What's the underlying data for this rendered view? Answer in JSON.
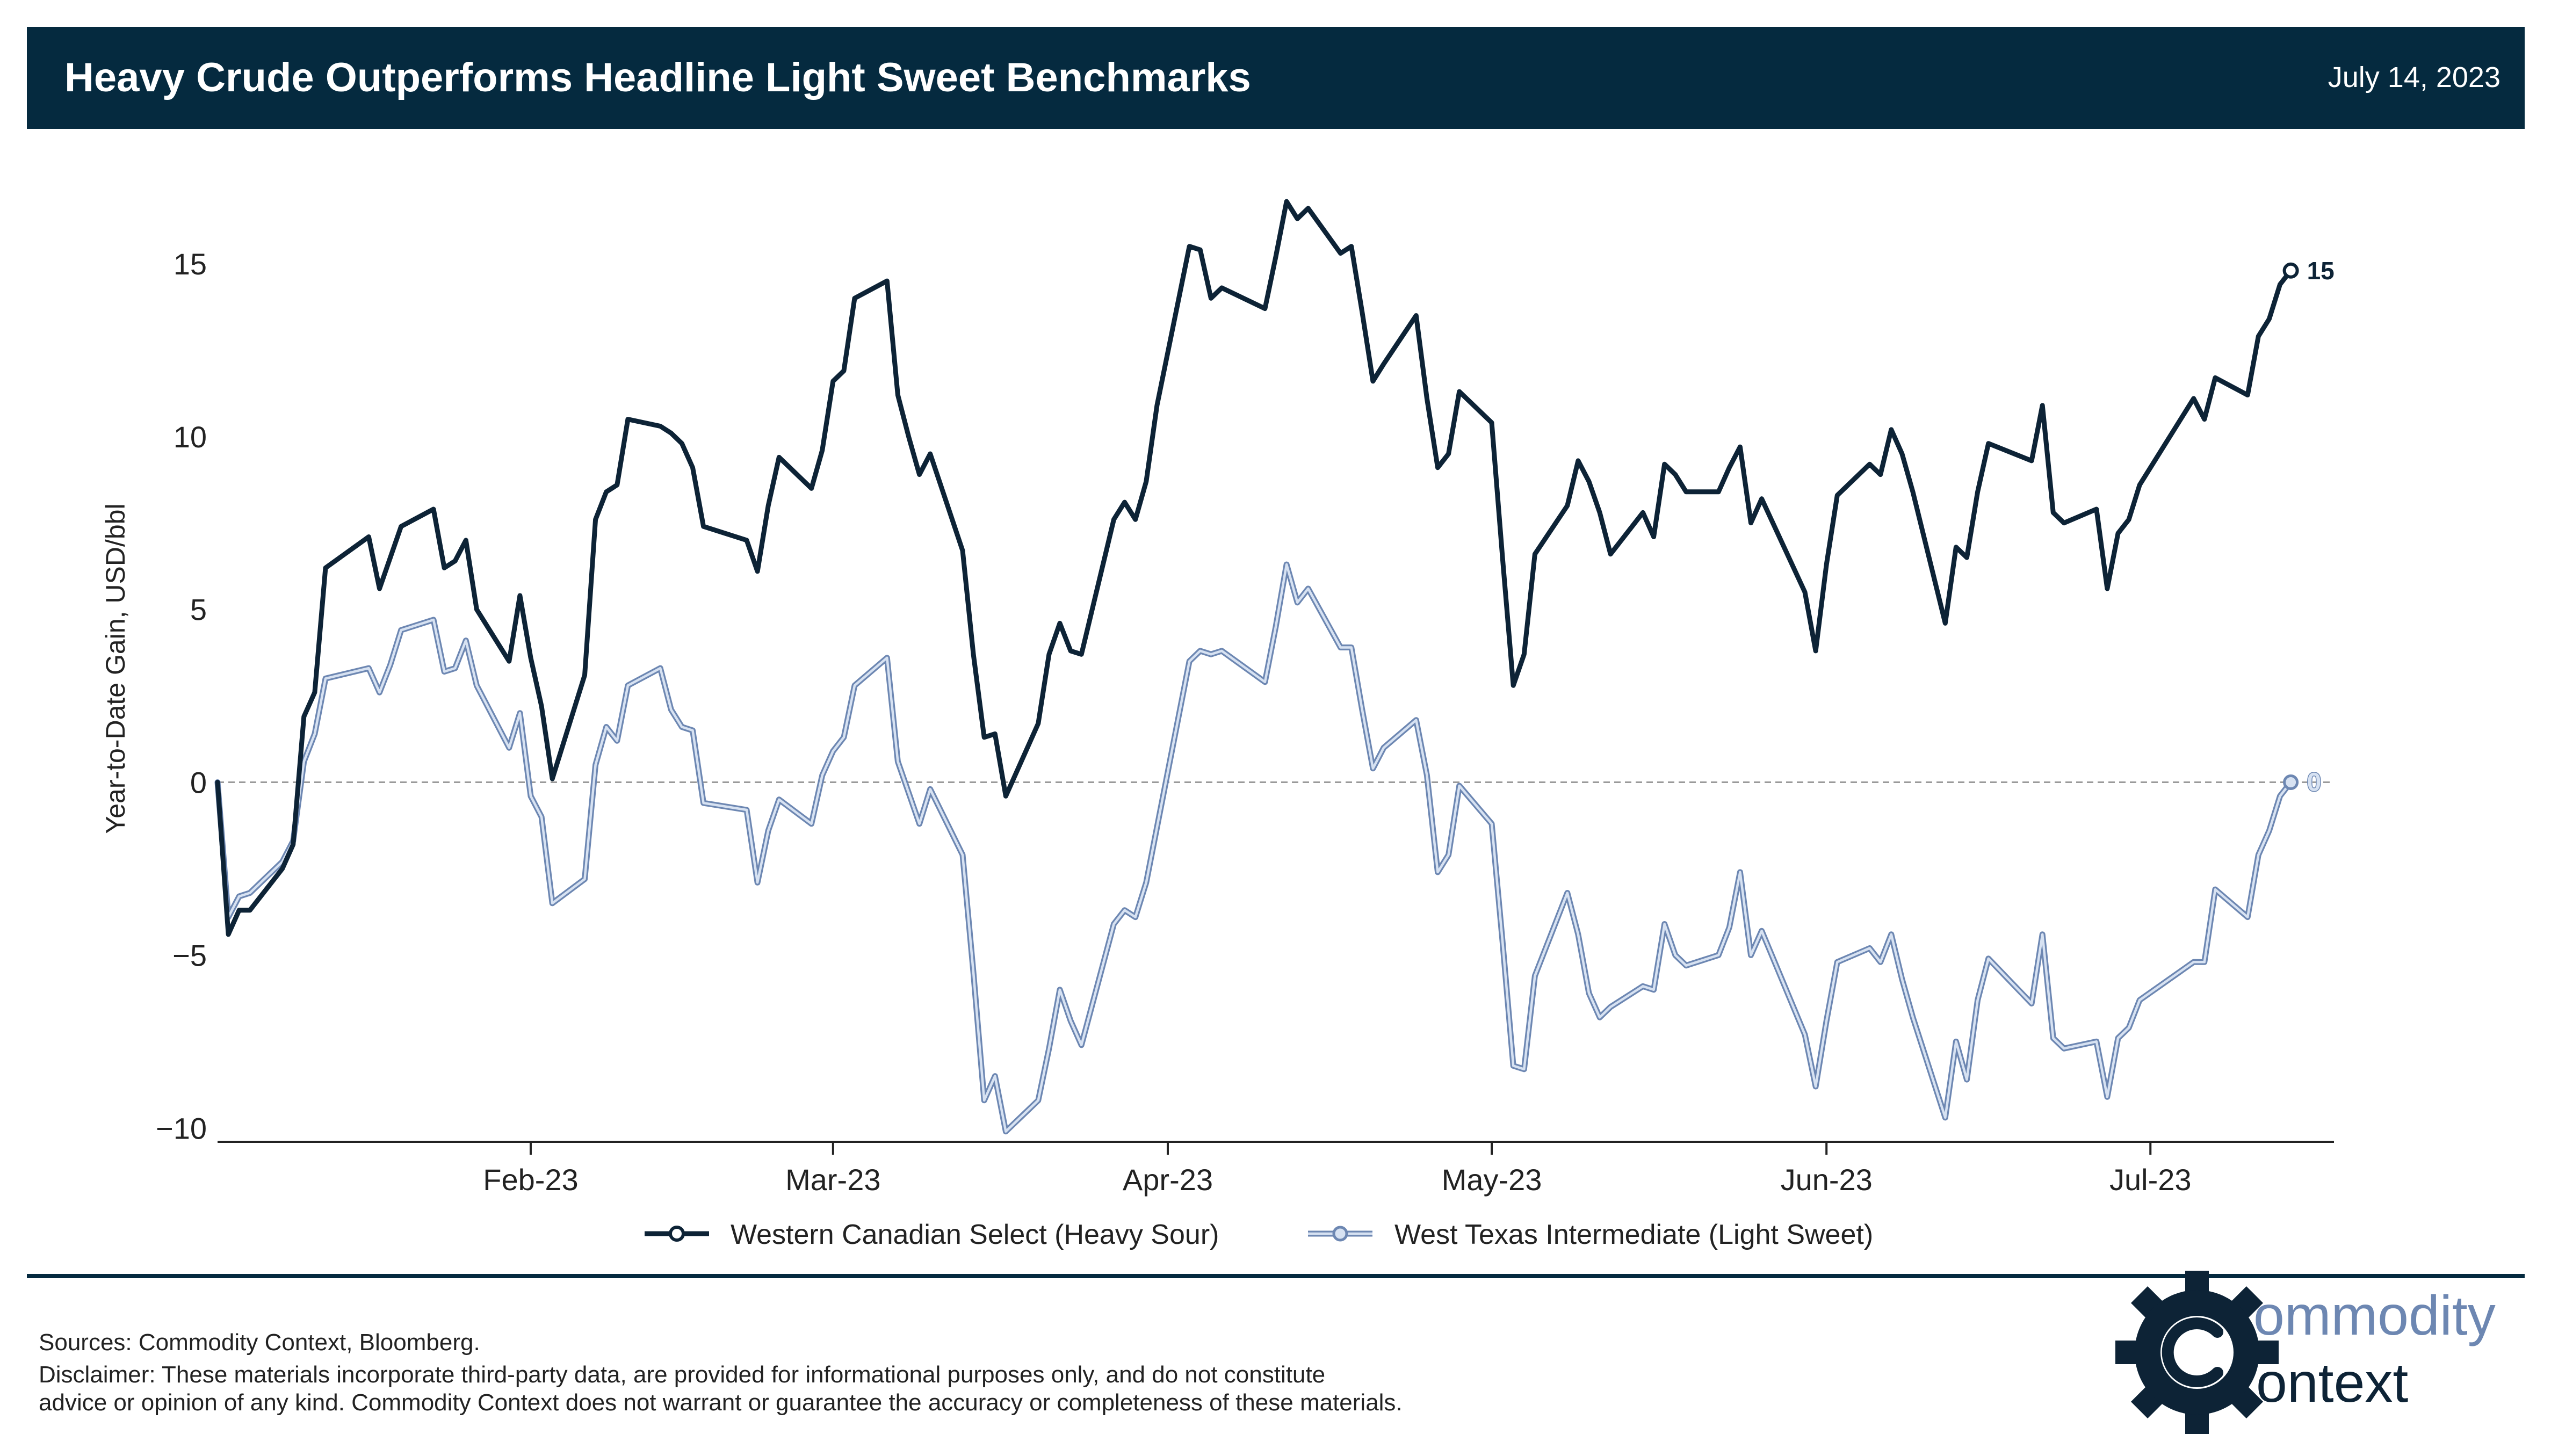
{
  "header": {
    "title": "Heavy Crude Outperforms Headline Light Sweet Benchmarks",
    "date": "July 14, 2023"
  },
  "colors": {
    "header_bg": "#052a3f",
    "header_text": "#ffffff",
    "wcs_line": "#0d2336",
    "wti_line": "#6d87b2",
    "wti_fill": "#d7e2f2",
    "zero_line": "#9a9a9a",
    "axis": "#222222",
    "logo_dark": "#0d2336",
    "logo_light": "#6d87b2"
  },
  "footer": {
    "sources": "Sources: Commodity Context, Bloomberg.",
    "disclaimer_line1": "Disclaimer: These materials incorporate third-party data, are provided for informational purposes only, and do not constitute",
    "disclaimer_line2": "advice or opinion of any kind. Commodity Context does not warrant or guarantee the accuracy or completeness of these materials."
  },
  "logo": {
    "word1_rest": "ommodity",
    "word2_rest": "ontext",
    "gear_letter": "C",
    "icon": "gear-c-icon"
  },
  "chart_data": {
    "type": "line",
    "title": "Heavy Crude Outperforms Headline Light Sweet Benchmarks",
    "ylabel": "Year-to-Date Gain, USD/bbl",
    "xlabel": "",
    "ylim": [
      -10.4,
      17.5
    ],
    "xlim": [
      "2023-01-03",
      "2023-07-18"
    ],
    "yticks": [
      -10,
      -5,
      0,
      5,
      10,
      15
    ],
    "ytick_labels": [
      "−10",
      "−5",
      "0",
      "5",
      "10",
      "15"
    ],
    "xticks": [
      "2023-02-01",
      "2023-03-01",
      "2023-04-01",
      "2023-05-01",
      "2023-06-01",
      "2023-07-01"
    ],
    "xtick_labels": [
      "Feb-23",
      "Mar-23",
      "Apr-23",
      "May-23",
      "Jun-23",
      "Jul-23"
    ],
    "zero_line": true,
    "grid": false,
    "legend_position": "bottom-center",
    "series": [
      {
        "name": "Western Canadian Select (Heavy Sour)",
        "end_label": "15",
        "points": [
          [
            "2023-01-03",
            0.0
          ],
          [
            "2023-01-04",
            -4.4
          ],
          [
            "2023-01-05",
            -3.7
          ],
          [
            "2023-01-06",
            -3.7
          ],
          [
            "2023-01-09",
            -2.5
          ],
          [
            "2023-01-10",
            -1.8
          ],
          [
            "2023-01-11",
            1.9
          ],
          [
            "2023-01-12",
            2.6
          ],
          [
            "2023-01-13",
            6.2
          ],
          [
            "2023-01-17",
            7.1
          ],
          [
            "2023-01-18",
            5.6
          ],
          [
            "2023-01-19",
            6.5
          ],
          [
            "2023-01-20",
            7.4
          ],
          [
            "2023-01-23",
            7.9
          ],
          [
            "2023-01-24",
            6.2
          ],
          [
            "2023-01-25",
            6.4
          ],
          [
            "2023-01-26",
            7.0
          ],
          [
            "2023-01-27",
            5.0
          ],
          [
            "2023-01-30",
            3.5
          ],
          [
            "2023-01-31",
            5.4
          ],
          [
            "2023-02-01",
            3.6
          ],
          [
            "2023-02-02",
            2.2
          ],
          [
            "2023-02-03",
            0.1
          ],
          [
            "2023-02-06",
            3.1
          ],
          [
            "2023-02-07",
            7.6
          ],
          [
            "2023-02-08",
            8.4
          ],
          [
            "2023-02-09",
            8.6
          ],
          [
            "2023-02-10",
            10.5
          ],
          [
            "2023-02-13",
            10.3
          ],
          [
            "2023-02-14",
            10.1
          ],
          [
            "2023-02-15",
            9.8
          ],
          [
            "2023-02-16",
            9.1
          ],
          [
            "2023-02-17",
            7.4
          ],
          [
            "2023-02-21",
            7.0
          ],
          [
            "2023-02-22",
            6.1
          ],
          [
            "2023-02-23",
            8.0
          ],
          [
            "2023-02-24",
            9.4
          ],
          [
            "2023-02-27",
            8.5
          ],
          [
            "2023-02-28",
            9.6
          ],
          [
            "2023-03-01",
            11.6
          ],
          [
            "2023-03-02",
            11.9
          ],
          [
            "2023-03-03",
            14.0
          ],
          [
            "2023-03-06",
            14.5
          ],
          [
            "2023-03-07",
            11.2
          ],
          [
            "2023-03-08",
            10.0
          ],
          [
            "2023-03-09",
            8.9
          ],
          [
            "2023-03-10",
            9.5
          ],
          [
            "2023-03-13",
            6.7
          ],
          [
            "2023-03-14",
            3.7
          ],
          [
            "2023-03-15",
            1.3
          ],
          [
            "2023-03-16",
            1.4
          ],
          [
            "2023-03-17",
            -0.4
          ],
          [
            "2023-03-20",
            1.7
          ],
          [
            "2023-03-21",
            3.7
          ],
          [
            "2023-03-22",
            4.6
          ],
          [
            "2023-03-23",
            3.8
          ],
          [
            "2023-03-24",
            3.7
          ],
          [
            "2023-03-27",
            7.6
          ],
          [
            "2023-03-28",
            8.1
          ],
          [
            "2023-03-29",
            7.6
          ],
          [
            "2023-03-30",
            8.7
          ],
          [
            "2023-03-31",
            10.9
          ],
          [
            "2023-04-03",
            15.5
          ],
          [
            "2023-04-04",
            15.4
          ],
          [
            "2023-04-05",
            14.0
          ],
          [
            "2023-04-06",
            14.3
          ],
          [
            "2023-04-10",
            13.7
          ],
          [
            "2023-04-11",
            15.2
          ],
          [
            "2023-04-12",
            16.8
          ],
          [
            "2023-04-13",
            16.3
          ],
          [
            "2023-04-14",
            16.6
          ],
          [
            "2023-04-17",
            15.3
          ],
          [
            "2023-04-18",
            15.5
          ],
          [
            "2023-04-19",
            13.6
          ],
          [
            "2023-04-20",
            11.6
          ],
          [
            "2023-04-21",
            12.1
          ],
          [
            "2023-04-24",
            13.5
          ],
          [
            "2023-04-25",
            11.1
          ],
          [
            "2023-04-26",
            9.1
          ],
          [
            "2023-04-27",
            9.5
          ],
          [
            "2023-04-28",
            11.3
          ],
          [
            "2023-05-01",
            10.4
          ],
          [
            "2023-05-02",
            6.5
          ],
          [
            "2023-05-03",
            2.8
          ],
          [
            "2023-05-04",
            3.7
          ],
          [
            "2023-05-05",
            6.6
          ],
          [
            "2023-05-08",
            8.0
          ],
          [
            "2023-05-09",
            9.3
          ],
          [
            "2023-05-10",
            8.7
          ],
          [
            "2023-05-11",
            7.8
          ],
          [
            "2023-05-12",
            6.6
          ],
          [
            "2023-05-15",
            7.8
          ],
          [
            "2023-05-16",
            7.1
          ],
          [
            "2023-05-17",
            9.2
          ],
          [
            "2023-05-18",
            8.9
          ],
          [
            "2023-05-19",
            8.4
          ],
          [
            "2023-05-22",
            8.4
          ],
          [
            "2023-05-23",
            9.1
          ],
          [
            "2023-05-24",
            9.7
          ],
          [
            "2023-05-25",
            7.5
          ],
          [
            "2023-05-26",
            8.2
          ],
          [
            "2023-05-30",
            5.5
          ],
          [
            "2023-05-31",
            3.8
          ],
          [
            "2023-06-01",
            6.3
          ],
          [
            "2023-06-02",
            8.3
          ],
          [
            "2023-06-05",
            9.2
          ],
          [
            "2023-06-06",
            8.9
          ],
          [
            "2023-06-07",
            10.2
          ],
          [
            "2023-06-08",
            9.5
          ],
          [
            "2023-06-09",
            8.4
          ],
          [
            "2023-06-12",
            4.6
          ],
          [
            "2023-06-13",
            6.8
          ],
          [
            "2023-06-14",
            6.5
          ],
          [
            "2023-06-15",
            8.4
          ],
          [
            "2023-06-16",
            9.8
          ],
          [
            "2023-06-20",
            9.3
          ],
          [
            "2023-06-21",
            10.9
          ],
          [
            "2023-06-22",
            7.8
          ],
          [
            "2023-06-23",
            7.5
          ],
          [
            "2023-06-26",
            7.9
          ],
          [
            "2023-06-27",
            5.6
          ],
          [
            "2023-06-28",
            7.2
          ],
          [
            "2023-06-29",
            7.6
          ],
          [
            "2023-06-30",
            8.6
          ],
          [
            "2023-07-05",
            11.1
          ],
          [
            "2023-07-06",
            10.5
          ],
          [
            "2023-07-07",
            11.7
          ],
          [
            "2023-07-10",
            11.2
          ],
          [
            "2023-07-11",
            12.9
          ],
          [
            "2023-07-12",
            13.4
          ],
          [
            "2023-07-13",
            14.4
          ],
          [
            "2023-07-14",
            14.8
          ]
        ]
      },
      {
        "name": "West Texas Intermediate (Light Sweet)",
        "end_label": "0",
        "points": [
          [
            "2023-01-03",
            0.0
          ],
          [
            "2023-01-04",
            -3.9
          ],
          [
            "2023-01-05",
            -3.3
          ],
          [
            "2023-01-06",
            -3.2
          ],
          [
            "2023-01-09",
            -2.3
          ],
          [
            "2023-01-10",
            -1.7
          ],
          [
            "2023-01-11",
            0.6
          ],
          [
            "2023-01-12",
            1.4
          ],
          [
            "2023-01-13",
            3.0
          ],
          [
            "2023-01-17",
            3.3
          ],
          [
            "2023-01-18",
            2.6
          ],
          [
            "2023-01-19",
            3.4
          ],
          [
            "2023-01-20",
            4.4
          ],
          [
            "2023-01-23",
            4.7
          ],
          [
            "2023-01-24",
            3.2
          ],
          [
            "2023-01-25",
            3.3
          ],
          [
            "2023-01-26",
            4.1
          ],
          [
            "2023-01-27",
            2.8
          ],
          [
            "2023-01-30",
            1.0
          ],
          [
            "2023-01-31",
            2.0
          ],
          [
            "2023-02-01",
            -0.4
          ],
          [
            "2023-02-02",
            -1.0
          ],
          [
            "2023-02-03",
            -3.5
          ],
          [
            "2023-02-06",
            -2.8
          ],
          [
            "2023-02-07",
            0.5
          ],
          [
            "2023-02-08",
            1.6
          ],
          [
            "2023-02-09",
            1.2
          ],
          [
            "2023-02-10",
            2.8
          ],
          [
            "2023-02-13",
            3.3
          ],
          [
            "2023-02-14",
            2.1
          ],
          [
            "2023-02-15",
            1.6
          ],
          [
            "2023-02-16",
            1.5
          ],
          [
            "2023-02-17",
            -0.6
          ],
          [
            "2023-02-21",
            -0.8
          ],
          [
            "2023-02-22",
            -2.9
          ],
          [
            "2023-02-23",
            -1.4
          ],
          [
            "2023-02-24",
            -0.5
          ],
          [
            "2023-02-27",
            -1.2
          ],
          [
            "2023-02-28",
            0.2
          ],
          [
            "2023-03-01",
            0.9
          ],
          [
            "2023-03-02",
            1.3
          ],
          [
            "2023-03-03",
            2.8
          ],
          [
            "2023-03-06",
            3.6
          ],
          [
            "2023-03-07",
            0.6
          ],
          [
            "2023-03-08",
            -0.3
          ],
          [
            "2023-03-09",
            -1.2
          ],
          [
            "2023-03-10",
            -0.2
          ],
          [
            "2023-03-13",
            -2.1
          ],
          [
            "2023-03-14",
            -5.5
          ],
          [
            "2023-03-15",
            -9.2
          ],
          [
            "2023-03-16",
            -8.5
          ],
          [
            "2023-03-17",
            -10.1
          ],
          [
            "2023-03-20",
            -9.2
          ],
          [
            "2023-03-21",
            -7.7
          ],
          [
            "2023-03-22",
            -6.0
          ],
          [
            "2023-03-23",
            -6.9
          ],
          [
            "2023-03-24",
            -7.6
          ],
          [
            "2023-03-27",
            -4.1
          ],
          [
            "2023-03-28",
            -3.7
          ],
          [
            "2023-03-29",
            -3.9
          ],
          [
            "2023-03-30",
            -2.9
          ],
          [
            "2023-03-31",
            -1.3
          ],
          [
            "2023-04-03",
            3.5
          ],
          [
            "2023-04-04",
            3.8
          ],
          [
            "2023-04-05",
            3.7
          ],
          [
            "2023-04-06",
            3.8
          ],
          [
            "2023-04-10",
            2.9
          ],
          [
            "2023-04-11",
            4.5
          ],
          [
            "2023-04-12",
            6.3
          ],
          [
            "2023-04-13",
            5.2
          ],
          [
            "2023-04-14",
            5.6
          ],
          [
            "2023-04-17",
            3.9
          ],
          [
            "2023-04-18",
            3.9
          ],
          [
            "2023-04-19",
            2.1
          ],
          [
            "2023-04-20",
            0.4
          ],
          [
            "2023-04-21",
            1.0
          ],
          [
            "2023-04-24",
            1.8
          ],
          [
            "2023-04-25",
            0.2
          ],
          [
            "2023-04-26",
            -2.6
          ],
          [
            "2023-04-27",
            -2.1
          ],
          [
            "2023-04-28",
            -0.1
          ],
          [
            "2023-05-01",
            -1.2
          ],
          [
            "2023-05-02",
            -4.6
          ],
          [
            "2023-05-03",
            -8.2
          ],
          [
            "2023-05-04",
            -8.3
          ],
          [
            "2023-05-05",
            -5.6
          ],
          [
            "2023-05-08",
            -3.2
          ],
          [
            "2023-05-09",
            -4.4
          ],
          [
            "2023-05-10",
            -6.1
          ],
          [
            "2023-05-11",
            -6.8
          ],
          [
            "2023-05-12",
            -6.5
          ],
          [
            "2023-05-15",
            -5.9
          ],
          [
            "2023-05-16",
            -6.0
          ],
          [
            "2023-05-17",
            -4.1
          ],
          [
            "2023-05-18",
            -5.0
          ],
          [
            "2023-05-19",
            -5.3
          ],
          [
            "2023-05-22",
            -5.0
          ],
          [
            "2023-05-23",
            -4.2
          ],
          [
            "2023-05-24",
            -2.6
          ],
          [
            "2023-05-25",
            -5.0
          ],
          [
            "2023-05-26",
            -4.3
          ],
          [
            "2023-05-30",
            -7.3
          ],
          [
            "2023-05-31",
            -8.8
          ],
          [
            "2023-06-01",
            -6.9
          ],
          [
            "2023-06-02",
            -5.2
          ],
          [
            "2023-06-05",
            -4.8
          ],
          [
            "2023-06-06",
            -5.2
          ],
          [
            "2023-06-07",
            -4.4
          ],
          [
            "2023-06-08",
            -5.7
          ],
          [
            "2023-06-09",
            -6.8
          ],
          [
            "2023-06-12",
            -9.7
          ],
          [
            "2023-06-13",
            -7.5
          ],
          [
            "2023-06-14",
            -8.6
          ],
          [
            "2023-06-15",
            -6.3
          ],
          [
            "2023-06-16",
            -5.1
          ],
          [
            "2023-06-20",
            -6.4
          ],
          [
            "2023-06-21",
            -4.4
          ],
          [
            "2023-06-22",
            -7.4
          ],
          [
            "2023-06-23",
            -7.7
          ],
          [
            "2023-06-26",
            -7.5
          ],
          [
            "2023-06-27",
            -9.1
          ],
          [
            "2023-06-28",
            -7.4
          ],
          [
            "2023-06-29",
            -7.1
          ],
          [
            "2023-06-30",
            -6.3
          ],
          [
            "2023-07-05",
            -5.2
          ],
          [
            "2023-07-06",
            -5.2
          ],
          [
            "2023-07-07",
            -3.1
          ],
          [
            "2023-07-10",
            -3.9
          ],
          [
            "2023-07-11",
            -2.1
          ],
          [
            "2023-07-12",
            -1.4
          ],
          [
            "2023-07-13",
            -0.4
          ],
          [
            "2023-07-14",
            0.0
          ]
        ]
      }
    ]
  }
}
